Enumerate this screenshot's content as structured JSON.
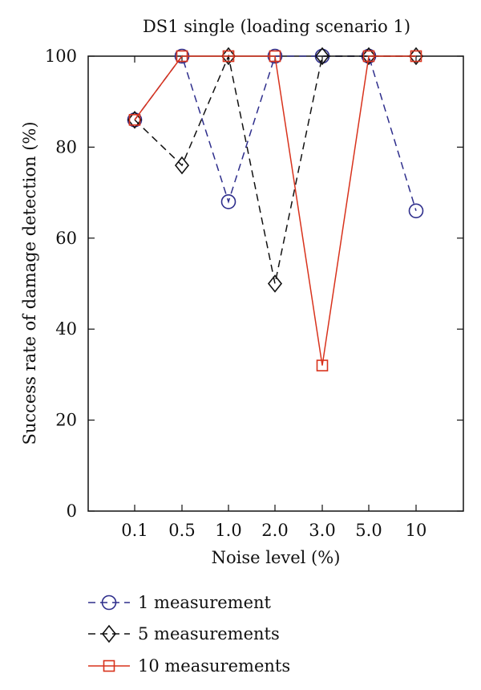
{
  "chart_data": {
    "type": "line",
    "title": "DS1 single (loading scenario 1)",
    "xlabel": "Noise level (%)",
    "ylabel": "Success rate of damage detection (%)",
    "categories": [
      "0.1",
      "0.5",
      "1.0",
      "2.0",
      "3.0",
      "5.0",
      "10"
    ],
    "ylim": [
      0,
      100
    ],
    "yticks": [
      "0",
      "20",
      "40",
      "60",
      "80",
      "100"
    ],
    "grid": false,
    "legend_position": "bottom",
    "series": [
      {
        "name": "1 measurement",
        "values": [
          86,
          100,
          68,
          100,
          100,
          100,
          66
        ],
        "color": "#2e2e8c",
        "line": "dashed",
        "marker": "circle"
      },
      {
        "name": "5 measurements",
        "values": [
          86,
          76,
          100,
          50,
          100,
          100,
          100
        ],
        "color": "#111111",
        "line": "dashed",
        "marker": "diamond"
      },
      {
        "name": "10 measurements",
        "values": [
          86,
          100,
          100,
          100,
          32,
          100,
          100
        ],
        "color": "#d8321c",
        "line": "solid",
        "marker": "square"
      }
    ]
  }
}
